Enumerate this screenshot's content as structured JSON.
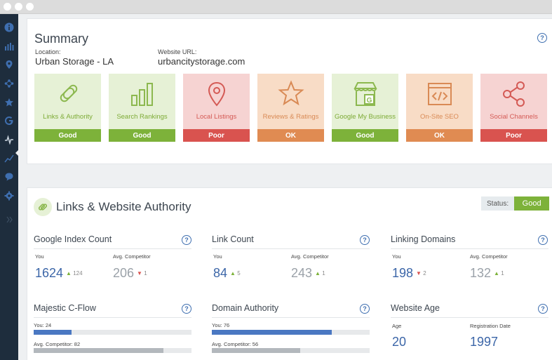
{
  "summary": {
    "title": "Summary",
    "location_label": "Location:",
    "location": "Urban Storage - LA",
    "website_label": "Website URL:",
    "website": "urbancitystorage.com",
    "cards": [
      {
        "label": "Links & Authority",
        "status": "Good",
        "icon": "links-icon"
      },
      {
        "label": "Search Rankings",
        "status": "Good",
        "icon": "bar-chart-icon"
      },
      {
        "label": "Local Listings",
        "status": "Poor",
        "icon": "map-pin-icon"
      },
      {
        "label": "Reviews & Ratings",
        "status": "OK",
        "icon": "star-icon"
      },
      {
        "label": "Google My Business",
        "status": "Good",
        "icon": "storefront-icon"
      },
      {
        "label": "On-Site SEO",
        "status": "OK",
        "icon": "code-window-icon"
      },
      {
        "label": "Social Channels",
        "status": "Poor",
        "icon": "share-icon"
      }
    ]
  },
  "links": {
    "title": "Links & Website Authority",
    "status_label": "Status:",
    "status": "Good",
    "metrics": {
      "google_index": {
        "title": "Google Index Count",
        "you_label": "You",
        "comp_label": "Avg. Competitor",
        "you": "1624",
        "you_delta": "124",
        "comp": "206",
        "comp_delta": "1"
      },
      "link_count": {
        "title": "Link Count",
        "you_label": "You",
        "comp_label": "Avg. Competitor",
        "you": "84",
        "you_delta": "5",
        "comp": "243",
        "comp_delta": "1"
      },
      "linking_domains": {
        "title": "Linking Domains",
        "you_label": "You",
        "comp_label": "Avg. Competitor",
        "you": "198",
        "you_delta": "2",
        "comp": "132",
        "comp_delta": "1"
      },
      "cflow": {
        "title": "Majestic C-Flow",
        "you_label": "You: 24",
        "comp_label": "Avg. Competitor: 82",
        "you": 24,
        "comp": 82
      },
      "domain_authority": {
        "title": "Domain Authority",
        "you_label": "You: 76",
        "comp_label": "Avg. Competitor: 56",
        "you": 76,
        "comp": 56
      },
      "website_age": {
        "title": "Website Age",
        "age_label": "Age",
        "reg_label": "Registration Date",
        "age": "20",
        "reg": "1997"
      }
    }
  },
  "help_glyph": "?",
  "colors": {
    "good": "#7db23a",
    "poor": "#d9534f",
    "ok": "#e08b52",
    "sidebar": "#1e2d3d",
    "link_blue": "#3c66a8"
  }
}
